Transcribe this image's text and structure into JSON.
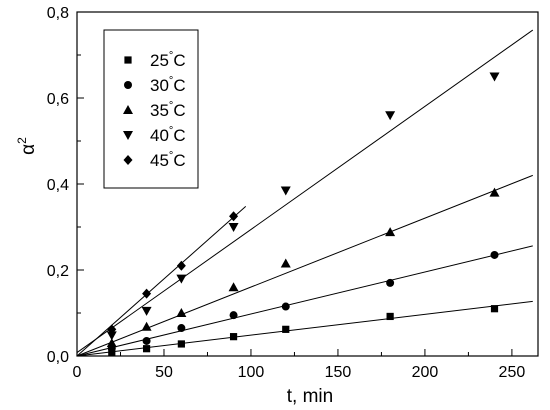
{
  "chart_data": {
    "type": "scatter",
    "xlabel": "t, min",
    "ylabel": "α²",
    "ylabel_base": "α",
    "ylabel_sup": "2",
    "xlim": [
      0,
      265
    ],
    "ylim": [
      0,
      0.8
    ],
    "xticks": [
      0,
      50,
      100,
      150,
      200,
      250
    ],
    "xtick_labels": [
      "0",
      "50",
      "100",
      "150",
      "200",
      "250"
    ],
    "yticks": [
      0.0,
      0.2,
      0.4,
      0.6,
      0.8
    ],
    "ytick_labels": [
      "0,0",
      "0,2",
      "0,4",
      "0,6",
      "0,8"
    ],
    "grid": false,
    "legend_position": "top-left",
    "series": [
      {
        "name": "25°C",
        "temp": "25",
        "unit": "°C",
        "marker": "square",
        "x": [
          20,
          40,
          60,
          90,
          120,
          180,
          240
        ],
        "y": [
          0.008,
          0.017,
          0.028,
          0.045,
          0.062,
          0.092,
          0.11
        ],
        "fit": {
          "x": [
            0,
            262
          ],
          "y": [
            0.0,
            0.127
          ]
        }
      },
      {
        "name": "30°C",
        "temp": "30",
        "unit": "°C",
        "marker": "circle",
        "x": [
          20,
          40,
          60,
          90,
          120,
          180,
          240
        ],
        "y": [
          0.018,
          0.035,
          0.065,
          0.095,
          0.115,
          0.17,
          0.235
        ],
        "fit": {
          "x": [
            0,
            262
          ],
          "y": [
            0.0,
            0.256
          ]
        }
      },
      {
        "name": "35°C",
        "temp": "35",
        "unit": "°C",
        "marker": "triangle-up",
        "x": [
          20,
          40,
          60,
          90,
          120,
          180,
          240
        ],
        "y": [
          0.03,
          0.068,
          0.1,
          0.16,
          0.215,
          0.288,
          0.38
        ],
        "fit": {
          "x": [
            0,
            262
          ],
          "y": [
            0.0,
            0.42
          ]
        }
      },
      {
        "name": "40°C",
        "temp": "40",
        "unit": "°C",
        "marker": "triangle-down",
        "x": [
          20,
          40,
          60,
          90,
          120,
          180,
          240
        ],
        "y": [
          0.048,
          0.105,
          0.18,
          0.3,
          0.385,
          0.56,
          0.65
        ],
        "fit": {
          "x": [
            0,
            262
          ],
          "y": [
            0.008,
            0.758
          ]
        }
      },
      {
        "name": "45°C",
        "temp": "45",
        "unit": "°C",
        "marker": "diamond",
        "x": [
          20,
          40,
          60,
          90
        ],
        "y": [
          0.062,
          0.145,
          0.21,
          0.325
        ],
        "fit": {
          "x": [
            0,
            97
          ],
          "y": [
            0.0,
            0.348
          ]
        }
      }
    ]
  }
}
